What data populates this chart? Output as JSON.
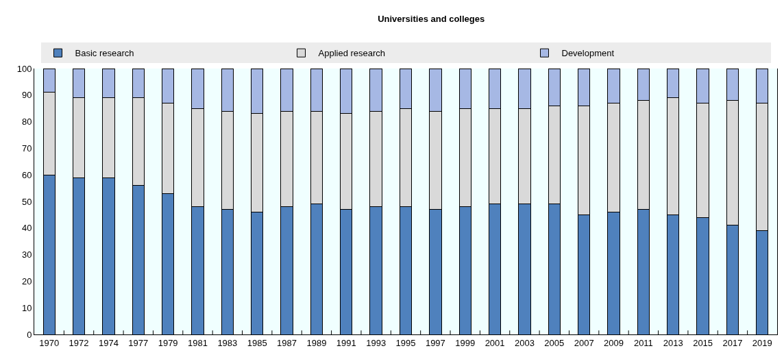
{
  "chart_data": {
    "type": "bar",
    "title": "Universities and colleges",
    "stacked": true,
    "legend": "top",
    "grid": false,
    "categories": [
      "1970",
      "1972",
      "1974",
      "1977",
      "1979",
      "1981",
      "1983",
      "1985",
      "1987",
      "1989",
      "1991",
      "1993",
      "1995",
      "1997",
      "1999",
      "2001",
      "2003",
      "2005",
      "2007",
      "2009",
      "2011",
      "2013",
      "2015",
      "2017",
      "2019"
    ],
    "series": [
      {
        "name": "Basic research",
        "color": "#4f81bd",
        "values": [
          60,
          59,
          59,
          56,
          53,
          48,
          47,
          46,
          48,
          49,
          47,
          48,
          48,
          47,
          48,
          49,
          49,
          49,
          45,
          46,
          47,
          45,
          44,
          41,
          39
        ]
      },
      {
        "name": "Applied research",
        "color": "#d9d9d9",
        "values": [
          31,
          30,
          30,
          33,
          34,
          37,
          37,
          37,
          36,
          35,
          36,
          36,
          37,
          37,
          37,
          36,
          36,
          37,
          41,
          41,
          41,
          44,
          43,
          47,
          48
        ]
      },
      {
        "name": "Development",
        "color": "#a6b8e4",
        "values": [
          9,
          11,
          11,
          11,
          13,
          15,
          16,
          17,
          16,
          16,
          17,
          16,
          15,
          16,
          15,
          15,
          15,
          14,
          14,
          13,
          12,
          11,
          13,
          12,
          13
        ]
      }
    ],
    "ylim": [
      0,
      100
    ],
    "yticks": [
      0,
      10,
      20,
      30,
      40,
      50,
      60,
      70,
      80,
      90,
      100
    ]
  }
}
